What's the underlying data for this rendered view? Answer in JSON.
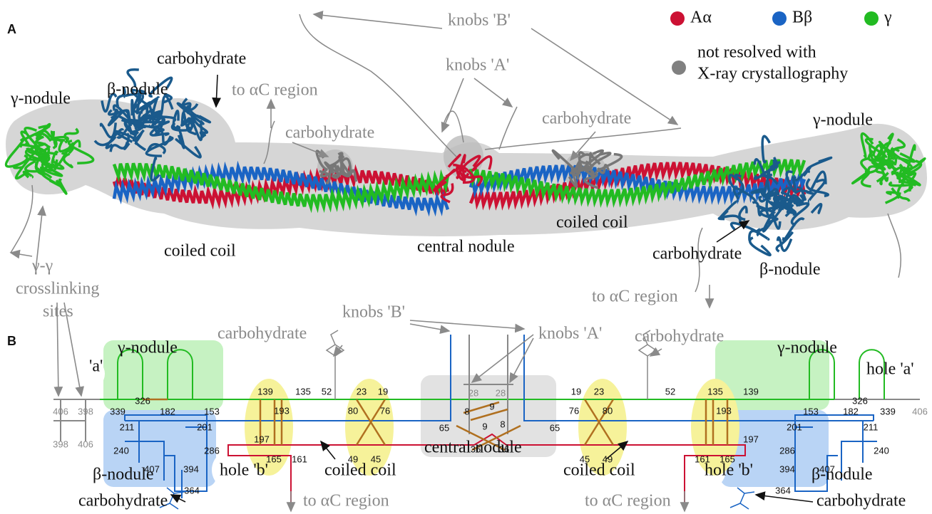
{
  "legend": {
    "items": [
      {
        "label": "Aα",
        "color": "#cc1133"
      },
      {
        "label": "Bβ",
        "color": "#1a64c4"
      },
      {
        "label": "γ",
        "color": "#22bb22"
      }
    ],
    "grey_item": {
      "lines": [
        "not resolved with",
        "X-ray crystallography"
      ],
      "color": "#808080"
    }
  },
  "panel_a": {
    "label": "A",
    "labels": [
      "γ-nodule",
      "β-nodule",
      "carbohydrate",
      "to αC region",
      "carbohydrate",
      "knobs 'B'",
      "knobs 'A'",
      "carbohydrate",
      "γ-nodule",
      "coiled coil",
      "central nodule",
      "coiled coil",
      "carbohydrate",
      "β-nodule",
      "γ-γ",
      "crosslinking",
      "sites",
      "to αC region"
    ]
  },
  "panel_b": {
    "label": "B",
    "labels": [
      "knobs 'B'",
      "carbohydrate",
      "knobs 'A'",
      "carbohydrate",
      "γ-nodule",
      "'a'",
      "γ-nodule",
      "hole 'a'",
      "β-nodule",
      "hole 'b'",
      "coiled coil",
      "central nodule",
      "coiled coil",
      "hole 'b'",
      "β-nodule",
      "carbohydrate",
      "to αC region",
      "to αC region",
      "carbohydrate"
    ],
    "residues": [
      406,
      398,
      398,
      406,
      406,
      28,
      28,
      339,
      326,
      182,
      153,
      139,
      135,
      52,
      23,
      19,
      80,
      76,
      8,
      9,
      9,
      8,
      65,
      65,
      36,
      36,
      193,
      197,
      165,
      161,
      49,
      45,
      211,
      201,
      240,
      286,
      407,
      394,
      364,
      19,
      23,
      52,
      135,
      139,
      76,
      80,
      193,
      197,
      45,
      49,
      161,
      165,
      153,
      182,
      326,
      339,
      201,
      211,
      286,
      240,
      394,
      407,
      364
    ]
  }
}
